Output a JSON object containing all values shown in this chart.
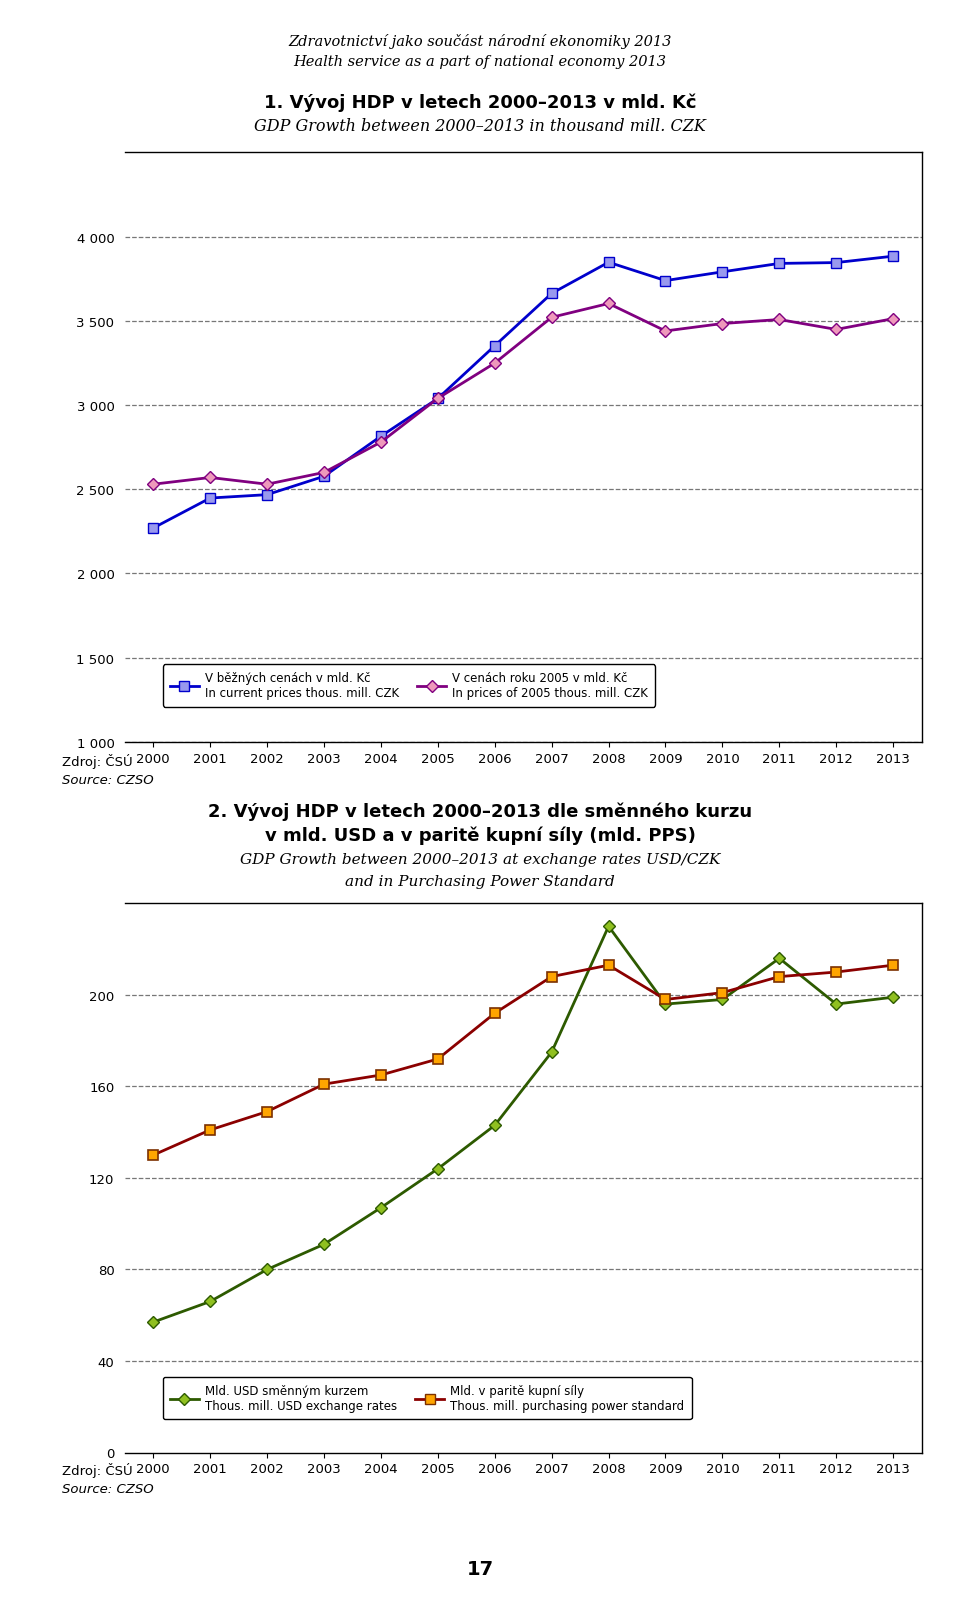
{
  "page_title1": "Zdravotnictví jako součást národní ekonomiky 2013",
  "page_title2": "Health service as a part of national economy 2013",
  "chart1_title1": "1. Vývoj HDP v letech 2000–2013 v mld. Kč",
  "chart1_title2": "GDP Growth between 2000–2013 in thousand mill. CZK",
  "years": [
    2000,
    2001,
    2002,
    2003,
    2004,
    2005,
    2006,
    2007,
    2008,
    2009,
    2010,
    2011,
    2012,
    2013
  ],
  "chart1_current": [
    2270,
    2448,
    2468,
    2577,
    2815,
    3039,
    3352,
    3663,
    3848,
    3739,
    3791,
    3841,
    3846,
    3884
  ],
  "chart1_2005": [
    2530,
    2570,
    2530,
    2600,
    2780,
    3040,
    3249,
    3521,
    3603,
    3440,
    3484,
    3508,
    3449,
    3513
  ],
  "chart1_color_current": "#0000CC",
  "chart1_color_2005": "#800080",
  "chart1_ylim": [
    1000,
    4500
  ],
  "chart1_yticks": [
    1000,
    1500,
    2000,
    2500,
    3000,
    3500,
    4000,
    4500
  ],
  "chart1_legend1_line": "V běžných cenách v mld. Kč",
  "chart1_legend1_sub": "In current prices thous. mill. CZK",
  "chart1_legend2_line": "V cenách roku 2005 v mld. Kč",
  "chart1_legend2_sub": "In prices of 2005 thous. mill. CZK",
  "chart1_source1": "Zdroj: ČSÚ",
  "chart1_source2": "Source: CZSO",
  "chart2_title1": "2. Vývoj HDP v letech 2000–2013 dle směnného kurzu",
  "chart2_title2": "v mld. USD a v paritě kupní síly (mld. PPS)",
  "chart2_title3": "GDP Growth between 2000–2013 at exchange rates USD/CZK",
  "chart2_title4": "and in Purchasing Power Standard",
  "chart2_exchange": [
    57,
    66,
    80,
    91,
    107,
    124,
    143,
    175,
    230,
    196,
    198,
    216,
    196,
    199
  ],
  "chart2_pps": [
    130,
    141,
    149,
    161,
    165,
    172,
    192,
    208,
    213,
    198,
    201,
    208,
    210,
    213
  ],
  "chart2_color_exchange": "#2D5A00",
  "chart2_color_pps": "#8B0000",
  "chart2_ylim": [
    0,
    240
  ],
  "chart2_yticks": [
    0,
    40,
    80,
    120,
    160,
    200,
    240
  ],
  "chart2_legend1_line": "Mld. USD směnným kurzem",
  "chart2_legend1_sub": "Thous. mill. USD exchange rates",
  "chart2_legend2_line": "Mld. v paritě kupní síly",
  "chart2_legend2_sub": "Thous. mill. purchasing power standard",
  "chart2_source1": "Zdroj: ČSÚ",
  "chart2_source2": "Source: CZSO",
  "page_number": "17",
  "background_color": "#FFFFFF",
  "grid_color": "#777777",
  "axis_color": "#000000"
}
